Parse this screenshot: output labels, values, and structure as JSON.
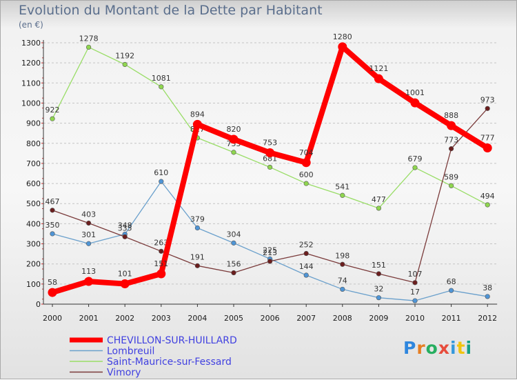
{
  "chart_data": {
    "type": "line",
    "title": "Evolution du Montant de la Dette par Habitant",
    "subtitle": "(en €)",
    "x": [
      "2000",
      "2001",
      "2002",
      "2003",
      "2004",
      "2005",
      "2006",
      "2007",
      "2008",
      "2009",
      "2010",
      "2011",
      "2012"
    ],
    "yticks": [
      "0",
      "100",
      "200",
      "300",
      "400",
      "500",
      "600",
      "700",
      "800",
      "900",
      "1000",
      "1100",
      "1200",
      "1300"
    ],
    "ylim": [
      0,
      1300
    ],
    "grid": "horizontal dashed",
    "legend_position": "bottom-left",
    "series": [
      {
        "name": "Lombreuil",
        "color": "#6aa0cc",
        "point_color": "#4f95d6",
        "values": [
          350,
          301,
          348,
          610,
          379,
          304,
          225,
          144,
          74,
          32,
          17,
          68,
          38
        ]
      },
      {
        "name": "Saint-Maurice-sur-Fessard",
        "color": "#99dd66",
        "point_color": "#8fd64f",
        "values": [
          922,
          1278,
          1192,
          1081,
          827,
          755,
          681,
          600,
          541,
          477,
          679,
          589,
          494
        ]
      },
      {
        "name": "Vimory",
        "color": "#7a3a3a",
        "point_color": "#6b1e1e",
        "values": [
          467,
          403,
          335,
          263,
          191,
          156,
          213,
          252,
          198,
          151,
          107,
          773,
          973
        ]
      },
      {
        "name": "CHEVILLON-SUR-HUILLARD",
        "color": "#ff0000",
        "point_color": "#ff0000",
        "values": [
          58,
          113,
          101,
          151,
          894,
          820,
          753,
          704,
          1280,
          1121,
          1001,
          888,
          777
        ],
        "highlight": true
      }
    ]
  },
  "logo": {
    "text": "Proxiti"
  }
}
